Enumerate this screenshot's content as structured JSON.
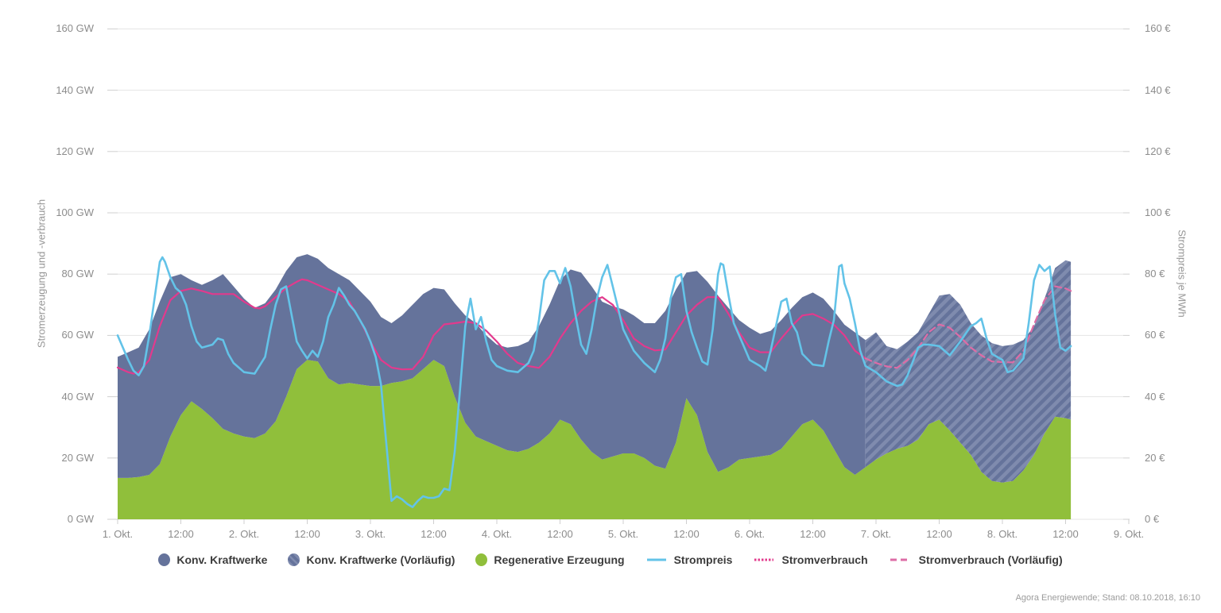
{
  "colors": {
    "konv": "#65739B",
    "konv_hatch_light": "#7F8BAE",
    "regenerative": "#90BF3B",
    "strompreis": "#63C3E8",
    "stromverbrauch": "#E23A8D",
    "stromverbrauch_vorlaeufig": "#DD6CA6",
    "grid": "#E4E4E4",
    "tick": "#CFCFCF",
    "axis_text": "#8C8C8C"
  },
  "y_axis_left": {
    "title": "Stromerzeugung und -verbrauch",
    "tick_labels": [
      "0 GW",
      "20 GW",
      "40 GW",
      "60 GW",
      "80 GW",
      "100 GW",
      "120 GW",
      "140 GW",
      "160 GW"
    ]
  },
  "y_axis_right": {
    "title": "Strompreis je MWh",
    "tick_labels": [
      "0 €",
      "20 €",
      "40 €",
      "60 €",
      "80 €",
      "100 €",
      "120 €",
      "140 €",
      "160 €"
    ]
  },
  "x_axis": {
    "tick_labels": [
      "1. Okt.",
      "12:00",
      "2. Okt.",
      "12:00",
      "3. Okt.",
      "12:00",
      "4. Okt.",
      "12:00",
      "5. Okt.",
      "12:00",
      "6. Okt.",
      "12:00",
      "7. Okt.",
      "12:00",
      "8. Okt.",
      "12:00",
      "9. Okt."
    ]
  },
  "legend": {
    "items": [
      {
        "label": "Konv. Kraftwerke",
        "marker": "circle-solid"
      },
      {
        "label": "Konv. Kraftwerke (Vorläufig)",
        "marker": "circle-hatched"
      },
      {
        "label": "Regenerative Erzeugung",
        "marker": "circle-green"
      },
      {
        "label": "Strompreis",
        "marker": "line-solid"
      },
      {
        "label": "Stromverbrauch",
        "marker": "line-fine-dash"
      },
      {
        "label": "Stromverbrauch (Vorläufig)",
        "marker": "line-dash"
      }
    ]
  },
  "footer": {
    "source": "Agora Energiewende; Stand: 08.10.2018, 16:10"
  },
  "chart_data": {
    "type": "combo-stacked-area-line",
    "x_unit": "hours since 1. Okt. 00:00",
    "x_span_hours": 192,
    "data_end_hour": 181,
    "preliminary_start_hour": 142,
    "ylim_left_gw": [
      0,
      160
    ],
    "ylim_right_eur": [
      0,
      160
    ],
    "grid": "horizontal-only",
    "hours": [
      0,
      2,
      4,
      6,
      8,
      10,
      12,
      14,
      16,
      18,
      20,
      22,
      24,
      26,
      28,
      30,
      32,
      34,
      36,
      38,
      40,
      42,
      44,
      46,
      48,
      50,
      52,
      54,
      56,
      58,
      60,
      62,
      64,
      66,
      68,
      70,
      72,
      74,
      76,
      78,
      80,
      82,
      84,
      86,
      88,
      90,
      92,
      94,
      96,
      98,
      100,
      102,
      104,
      106,
      108,
      110,
      112,
      114,
      116,
      118,
      120,
      122,
      124,
      126,
      128,
      130,
      132,
      134,
      136,
      138,
      140,
      142,
      144,
      146,
      148,
      150,
      152,
      154,
      156,
      158,
      160,
      162,
      164,
      166,
      168,
      170,
      172,
      174,
      176,
      178,
      180,
      181
    ],
    "series": {
      "regenerative_erzeugung_gw": [
        13.5,
        13.5,
        13.8,
        14.5,
        18,
        27,
        34,
        38.5,
        36,
        33,
        29.5,
        28,
        27,
        26.5,
        28,
        32,
        40,
        49,
        52,
        51.5,
        46,
        44,
        44.5,
        44,
        43.5,
        43.5,
        44.5,
        45,
        46,
        49,
        52,
        50,
        40,
        31.5,
        27,
        25.5,
        24,
        22.5,
        22,
        23,
        25,
        28,
        32.5,
        31,
        26,
        22,
        19.5,
        20.5,
        21.5,
        21.5,
        20,
        17.5,
        16.5,
        25,
        39.5,
        34,
        22,
        15.5,
        17,
        19.5,
        20,
        20.5,
        21,
        23,
        27,
        31,
        32.5,
        29,
        23,
        17,
        14.5,
        17,
        19.5,
        21.5,
        23,
        24,
        26,
        31,
        32.5,
        29,
        25,
        21,
        15.5,
        12.5,
        12,
        12.5,
        16,
        21,
        28,
        33.5,
        33,
        32.5
      ],
      "konv_kraftwerke_gw": [
        39.5,
        41,
        42.2,
        47.5,
        53,
        52,
        46,
        39.5,
        40.5,
        45,
        50.5,
        48,
        45,
        42.5,
        42.5,
        43,
        41,
        36.5,
        34.5,
        33.5,
        36,
        36,
        33.5,
        30.5,
        27.5,
        22.5,
        19.5,
        21.5,
        24,
        24.5,
        23.5,
        25,
        30.5,
        35,
        37,
        34.5,
        33,
        33.5,
        34.5,
        35,
        38,
        42,
        45.5,
        50.5,
        54.5,
        54,
        51.5,
        49,
        47,
        45,
        44,
        46.5,
        51.5,
        50,
        41,
        47,
        55.5,
        57.5,
        52,
        45.5,
        42.5,
        40,
        40.5,
        42,
        42,
        41.5,
        41.5,
        43,
        45,
        46.5,
        46.5,
        41.5,
        41.5,
        35,
        32.5,
        34,
        35,
        36,
        40.5,
        44.5,
        45,
        43,
        44.5,
        45,
        44.5,
        44.5,
        42.5,
        42,
        44,
        48.5,
        51.5,
        51.5
      ],
      "strompreis_eur_mwh": [
        [
          0,
          60
        ],
        [
          2,
          52
        ],
        [
          3,
          48.5
        ],
        [
          4,
          47
        ],
        [
          5,
          50
        ],
        [
          6,
          60
        ],
        [
          7,
          72
        ],
        [
          8,
          84
        ],
        [
          8.5,
          85.5
        ],
        [
          9,
          84
        ],
        [
          10,
          79
        ],
        [
          11,
          75.5
        ],
        [
          12,
          74
        ],
        [
          13,
          70
        ],
        [
          14,
          63
        ],
        [
          15,
          58
        ],
        [
          16,
          56
        ],
        [
          18,
          57
        ],
        [
          19,
          59
        ],
        [
          20,
          58.5
        ],
        [
          21,
          54
        ],
        [
          22,
          51
        ],
        [
          24,
          48
        ],
        [
          26,
          47.5
        ],
        [
          28,
          53
        ],
        [
          29,
          62
        ],
        [
          30,
          70
        ],
        [
          31,
          75
        ],
        [
          32,
          76
        ],
        [
          33,
          67
        ],
        [
          34,
          58
        ],
        [
          35,
          55
        ],
        [
          36,
          52.5
        ],
        [
          37,
          55
        ],
        [
          38,
          53
        ],
        [
          39,
          58
        ],
        [
          40,
          66
        ],
        [
          41,
          70
        ],
        [
          42,
          75.5
        ],
        [
          43,
          73
        ],
        [
          44,
          70
        ],
        [
          45,
          68
        ],
        [
          46,
          65
        ],
        [
          47,
          62
        ],
        [
          48,
          58
        ],
        [
          49,
          53
        ],
        [
          50,
          44
        ],
        [
          51,
          25
        ],
        [
          52,
          6
        ],
        [
          53,
          7.5
        ],
        [
          54,
          6.5
        ],
        [
          55,
          5
        ],
        [
          56,
          4
        ],
        [
          57,
          6
        ],
        [
          58,
          7.5
        ],
        [
          59,
          7
        ],
        [
          60,
          7
        ],
        [
          61,
          7.5
        ],
        [
          62,
          10
        ],
        [
          63,
          9.5
        ],
        [
          64,
          22
        ],
        [
          65,
          42
        ],
        [
          66,
          63
        ],
        [
          67,
          72
        ],
        [
          68,
          62
        ],
        [
          69,
          66
        ],
        [
          70,
          58
        ],
        [
          71,
          52
        ],
        [
          72,
          50
        ],
        [
          74,
          48.5
        ],
        [
          76,
          48
        ],
        [
          78,
          51
        ],
        [
          79,
          55
        ],
        [
          80,
          65
        ],
        [
          81,
          78
        ],
        [
          82,
          81
        ],
        [
          83,
          81
        ],
        [
          84,
          77
        ],
        [
          85,
          82
        ],
        [
          86,
          76
        ],
        [
          87,
          66
        ],
        [
          88,
          57
        ],
        [
          89,
          54
        ],
        [
          90,
          62
        ],
        [
          91,
          72
        ],
        [
          92,
          79
        ],
        [
          93,
          83
        ],
        [
          94,
          76
        ],
        [
          95,
          69
        ],
        [
          96,
          62
        ],
        [
          98,
          55
        ],
        [
          100,
          51
        ],
        [
          102,
          48
        ],
        [
          103,
          52
        ],
        [
          104,
          59
        ],
        [
          105,
          72
        ],
        [
          106,
          79
        ],
        [
          107,
          80
        ],
        [
          108,
          68
        ],
        [
          109,
          61
        ],
        [
          110,
          56
        ],
        [
          111,
          51.5
        ],
        [
          112,
          50.5
        ],
        [
          113,
          62
        ],
        [
          114,
          80
        ],
        [
          114.5,
          83.5
        ],
        [
          115,
          83
        ],
        [
          116,
          73
        ],
        [
          117,
          64
        ],
        [
          118,
          60
        ],
        [
          119,
          56
        ],
        [
          120,
          52
        ],
        [
          122,
          50
        ],
        [
          123,
          48.5
        ],
        [
          124,
          55
        ],
        [
          125,
          63
        ],
        [
          126,
          71
        ],
        [
          127,
          72
        ],
        [
          128,
          64
        ],
        [
          129,
          61
        ],
        [
          130,
          54
        ],
        [
          132,
          50.5
        ],
        [
          134,
          50
        ],
        [
          135,
          58
        ],
        [
          136,
          65
        ],
        [
          137,
          82.5
        ],
        [
          137.5,
          83
        ],
        [
          138,
          77
        ],
        [
          139,
          72
        ],
        [
          140,
          64
        ],
        [
          141,
          55
        ],
        [
          142,
          50
        ],
        [
          143,
          49
        ],
        [
          144,
          48
        ],
        [
          145,
          46.5
        ],
        [
          146,
          45
        ],
        [
          148,
          43.5
        ],
        [
          149,
          44
        ],
        [
          150,
          47
        ],
        [
          152,
          56
        ],
        [
          153,
          57
        ],
        [
          154,
          57
        ],
        [
          156,
          56.5
        ],
        [
          158,
          53.5
        ],
        [
          160,
          58
        ],
        [
          162,
          63
        ],
        [
          163,
          64
        ],
        [
          164,
          65.5
        ],
        [
          165,
          59
        ],
        [
          166,
          54
        ],
        [
          168,
          52
        ],
        [
          169,
          48
        ],
        [
          170,
          48.5
        ],
        [
          172,
          52.5
        ],
        [
          173,
          64
        ],
        [
          174,
          78
        ],
        [
          175,
          83
        ],
        [
          176,
          81
        ],
        [
          177,
          82.5
        ],
        [
          178,
          67
        ],
        [
          179,
          56
        ],
        [
          180,
          55
        ],
        [
          181,
          56.5
        ]
      ],
      "stromverbrauch_gw": [
        [
          0,
          49.5
        ],
        [
          2,
          48
        ],
        [
          3,
          47.5
        ],
        [
          4,
          48
        ],
        [
          6,
          52
        ],
        [
          8,
          63
        ],
        [
          10,
          71.5
        ],
        [
          12,
          74.5
        ],
        [
          14,
          75.3
        ],
        [
          16,
          74.5
        ],
        [
          18,
          73.5
        ],
        [
          20,
          73.5
        ],
        [
          22,
          73.5
        ],
        [
          24,
          71
        ],
        [
          26,
          69
        ],
        [
          27,
          68.8
        ],
        [
          28,
          69.5
        ],
        [
          30,
          72.5
        ],
        [
          32,
          75.5
        ],
        [
          34,
          77.5
        ],
        [
          35,
          78.3
        ],
        [
          36,
          78
        ],
        [
          38,
          76.5
        ],
        [
          40,
          75
        ],
        [
          42,
          73.5
        ],
        [
          44,
          71
        ],
        [
          46,
          65
        ],
        [
          48,
          58
        ],
        [
          50,
          52
        ],
        [
          52,
          49.5
        ],
        [
          54,
          48.9
        ],
        [
          56,
          49
        ],
        [
          58,
          53
        ],
        [
          60,
          60
        ],
        [
          62,
          63.6
        ],
        [
          64,
          64
        ],
        [
          66,
          64.5
        ],
        [
          68,
          64
        ],
        [
          70,
          61.5
        ],
        [
          72,
          58
        ],
        [
          74,
          54
        ],
        [
          76,
          51
        ],
        [
          78,
          50
        ],
        [
          80,
          49.4
        ],
        [
          82,
          53
        ],
        [
          84,
          59
        ],
        [
          86,
          64
        ],
        [
          88,
          68
        ],
        [
          90,
          71
        ],
        [
          92,
          72.5
        ],
        [
          94,
          70
        ],
        [
          96,
          65
        ],
        [
          98,
          59
        ],
        [
          100,
          56.5
        ],
        [
          102,
          55.1
        ],
        [
          104,
          55.4
        ],
        [
          106,
          61
        ],
        [
          108,
          66.5
        ],
        [
          110,
          70
        ],
        [
          112,
          72.5
        ],
        [
          114,
          72.5
        ],
        [
          116,
          67
        ],
        [
          118,
          61
        ],
        [
          120,
          56
        ],
        [
          122,
          54.5
        ],
        [
          124,
          54.5
        ],
        [
          126,
          59
        ],
        [
          128,
          63
        ],
        [
          130,
          66.5
        ],
        [
          132,
          67
        ],
        [
          134,
          65.5
        ],
        [
          136,
          63.5
        ],
        [
          138,
          60
        ],
        [
          140,
          55
        ],
        [
          142,
          52.5
        ],
        [
          144,
          51
        ],
        [
          146,
          49.9
        ],
        [
          148,
          49.4
        ],
        [
          150,
          52
        ],
        [
          152,
          55.9
        ],
        [
          154,
          61
        ],
        [
          156,
          63.6
        ],
        [
          158,
          62.5
        ],
        [
          160,
          59.5
        ],
        [
          162,
          56
        ],
        [
          164,
          53.5
        ],
        [
          166,
          51.5
        ],
        [
          168,
          51.3
        ],
        [
          170,
          51.2
        ],
        [
          172,
          55
        ],
        [
          174,
          63.6
        ],
        [
          176,
          71.5
        ],
        [
          178,
          76
        ],
        [
          180,
          75.3
        ],
        [
          181,
          74.5
        ]
      ]
    }
  }
}
